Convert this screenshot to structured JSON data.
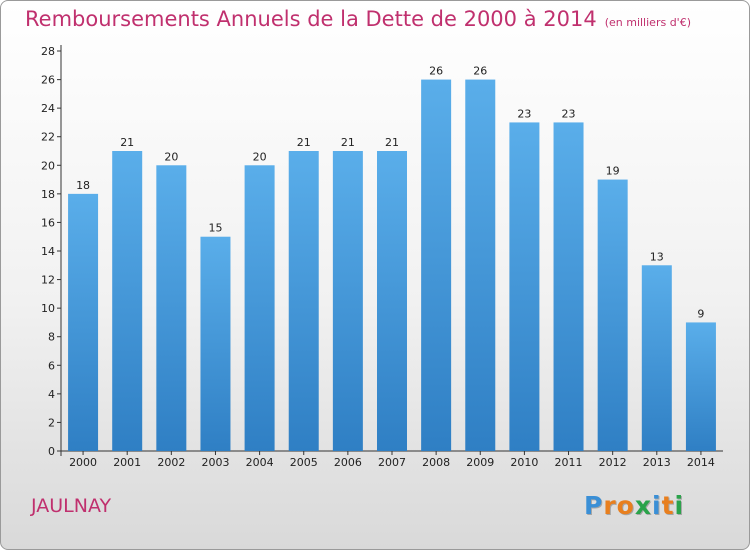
{
  "title": "Remboursements Annuels de la Dette de 2000 à 2014",
  "unit": "(en milliers d'€)",
  "commune": "JAULNAY",
  "logo": {
    "letters": [
      "P",
      "r",
      "o",
      "x",
      "i",
      "t",
      "i"
    ],
    "colors": [
      "#3a8fd6",
      "#e87f1e",
      "#e87f1e",
      "#2aa34a",
      "#3a8fd6",
      "#e87f1e",
      "#2aa34a"
    ]
  },
  "colors": {
    "title": "#c0306e",
    "bar_top": "#5aaeea",
    "bar_bottom": "#2f7fc4"
  },
  "chart_data": {
    "type": "bar",
    "categories": [
      "2000",
      "2001",
      "2002",
      "2003",
      "2004",
      "2005",
      "2006",
      "2007",
      "2008",
      "2009",
      "2010",
      "2011",
      "2012",
      "2013",
      "2014"
    ],
    "values": [
      18,
      21,
      20,
      15,
      20,
      21,
      21,
      21,
      26,
      26,
      23,
      23,
      19,
      13,
      9
    ],
    "ylim": [
      0,
      28
    ],
    "yticks": [
      0,
      2,
      4,
      6,
      8,
      10,
      12,
      14,
      16,
      18,
      20,
      22,
      24,
      26,
      28
    ],
    "grid": false,
    "data_labels": true
  }
}
